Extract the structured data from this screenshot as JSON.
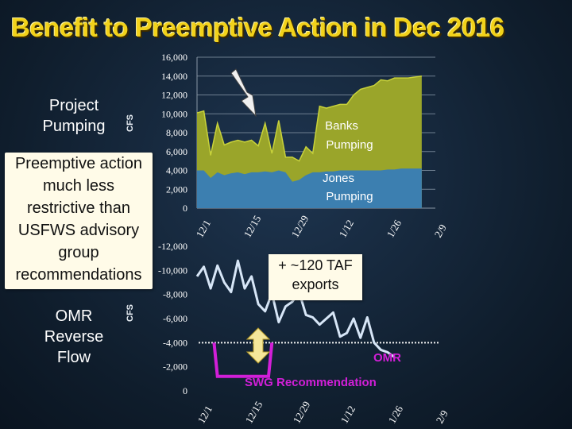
{
  "slide": {
    "title": "Benefit to Preemptive Action in Dec 2016",
    "left_top_label_1": "Project",
    "left_top_label_2": "Pumping",
    "left_bottom_label_1": "OMR",
    "left_bottom_label_2": "Reverse",
    "left_bottom_label_3": "Flow",
    "callout_lines": [
      "Preemptive action",
      "much less",
      "restrictive than",
      "USFWS advisory",
      "group",
      "recommendations"
    ],
    "exports_lines": [
      "+ ~120 TAF",
      "exports"
    ]
  },
  "chart_data": [
    {
      "type": "area",
      "ylabel": "CFS",
      "y_ticks": [
        "16,000",
        "14,000",
        "12,000",
        "10,000",
        "8,000",
        "6,000",
        "4,000",
        "2,000",
        "0"
      ],
      "ylim": [
        0,
        16000
      ],
      "x_ticks": [
        "12/1",
        "12/15",
        "12/29",
        "1/12",
        "1/26",
        "2/9"
      ],
      "series_labels": {
        "banks": [
          "Banks",
          "Pumping"
        ],
        "jones": [
          "Jones",
          "Pumping"
        ]
      },
      "colors": {
        "banks": "#9aa52a",
        "jones": "#3c7fb0"
      },
      "x": [
        "12/1",
        "12/3",
        "12/5",
        "12/7",
        "12/9",
        "12/11",
        "12/13",
        "12/15",
        "12/17",
        "12/19",
        "12/21",
        "12/23",
        "12/25",
        "12/27",
        "12/29",
        "12/31",
        "1/2",
        "1/4",
        "1/6",
        "1/8",
        "1/10",
        "1/12",
        "1/14",
        "1/16",
        "1/18",
        "1/20",
        "1/22",
        "1/24",
        "1/26",
        "1/28",
        "1/30",
        "2/1",
        "2/3",
        "2/5"
      ],
      "series": [
        {
          "name": "Jones Pumping",
          "values": [
            4000,
            4000,
            3200,
            3800,
            3500,
            3700,
            3800,
            3600,
            3800,
            3800,
            3900,
            3800,
            4000,
            3800,
            2800,
            3000,
            3500,
            3800,
            3800,
            3900,
            3900,
            4000,
            4000,
            4000,
            4000,
            4000,
            4000,
            4000,
            4100,
            4100,
            4200,
            4200,
            4200,
            4200
          ]
        },
        {
          "name": "Total Pumping",
          "values": [
            10100,
            10300,
            5600,
            9000,
            6700,
            7000,
            7200,
            7000,
            7200,
            6600,
            9000,
            5800,
            9300,
            5400,
            5400,
            5000,
            6500,
            5800,
            10800,
            10600,
            10800,
            11000,
            11000,
            12000,
            12600,
            12800,
            13000,
            13600,
            13500,
            13800,
            13800,
            13800,
            13900,
            14000
          ]
        }
      ]
    },
    {
      "type": "line",
      "ylabel": "CFS",
      "y_ticks": [
        "-12,000",
        "-10,000",
        "-8,000",
        "-6,000",
        "-4,000",
        "-2,000",
        "0"
      ],
      "ylim": [
        -12000,
        0
      ],
      "x_ticks": [
        "12/1",
        "12/15",
        "12/29",
        "1/12",
        "1/26",
        "2/9"
      ],
      "annotations": {
        "omr": "OMR",
        "swg": "SWG Recommendation"
      },
      "colors": {
        "omr": "#d7e6f7",
        "swg": "#d21fd8",
        "reference": "#f2f2f2"
      },
      "omr": {
        "x": [
          "12/1",
          "12/3",
          "12/5",
          "12/7",
          "12/9",
          "12/11",
          "12/13",
          "12/15",
          "12/17",
          "12/19",
          "12/21",
          "12/23",
          "12/25",
          "12/27",
          "12/29",
          "12/31",
          "1/2",
          "1/4",
          "1/6",
          "1/8",
          "1/10",
          "1/12",
          "1/14",
          "1/16",
          "1/18",
          "1/20",
          "1/22",
          "1/24",
          "1/26",
          "1/28"
        ],
        "values": [
          -9500,
          -10300,
          -8500,
          -10400,
          -9000,
          -8200,
          -10800,
          -8500,
          -9500,
          -7200,
          -6600,
          -8100,
          -5700,
          -7000,
          -7400,
          -8200,
          -6300,
          -6100,
          -5500,
          -6000,
          -6500,
          -4500,
          -4800,
          -6000,
          -4400,
          -6100,
          -4000,
          -3400,
          -3200,
          -2800
        ]
      },
      "swg_recommendation": {
        "x": [
          "12/6",
          "12/7",
          "12/22",
          "12/23"
        ],
        "values": [
          -4000,
          -1200,
          -1200,
          -4000
        ]
      },
      "reference_value": -4000
    }
  ]
}
